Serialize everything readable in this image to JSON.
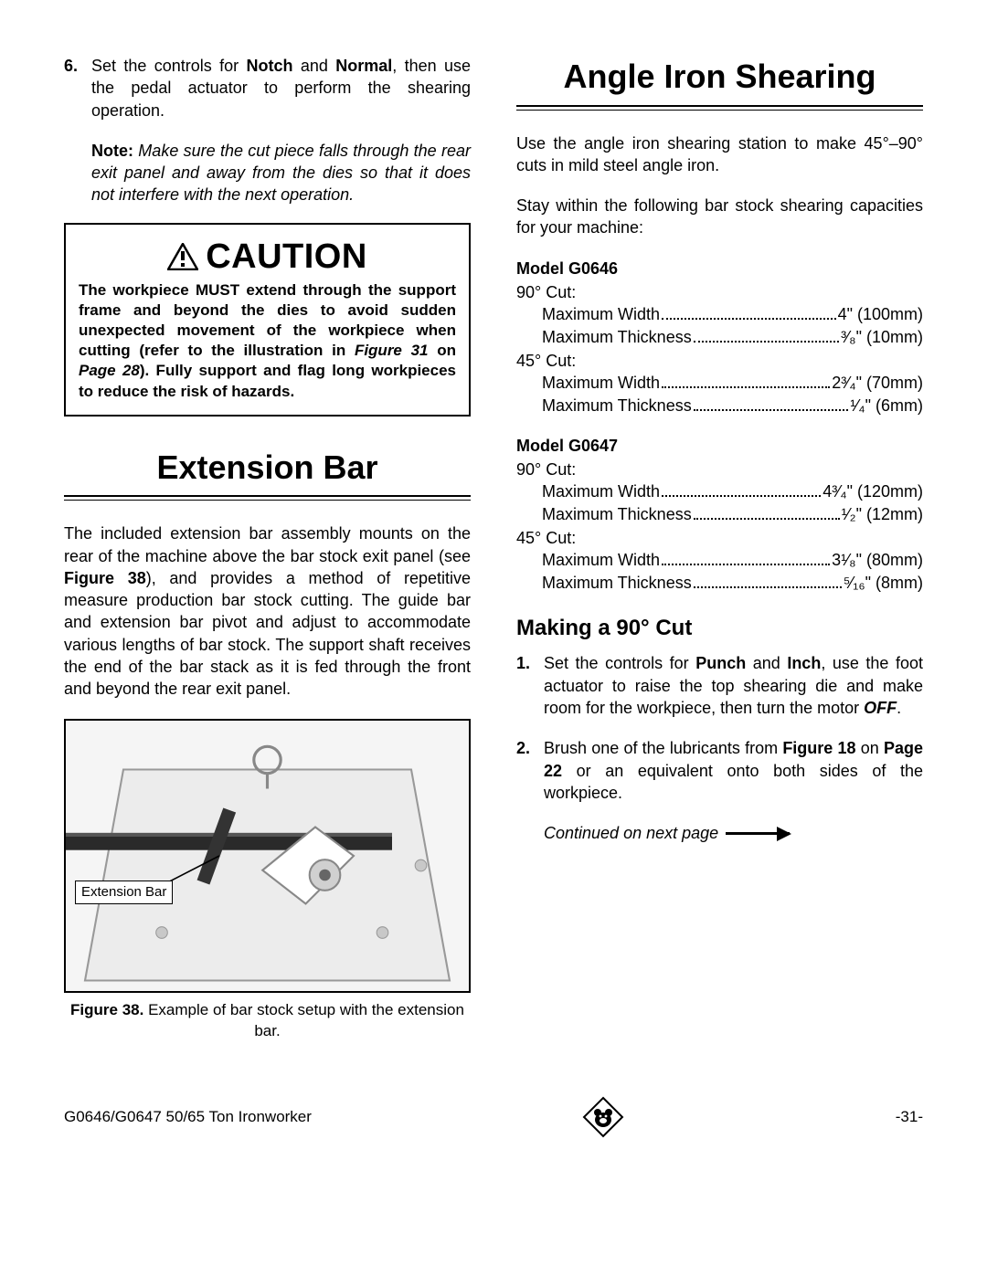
{
  "left": {
    "step6": {
      "num": "6.",
      "text_pre": "Set the controls for ",
      "b1": "Notch",
      "text_mid1": " and ",
      "b2": "Normal",
      "text_post": ", then use the pedal actuator to perform the shearing operation."
    },
    "note": {
      "label": "Note:",
      "text": " Make sure the cut piece falls through the rear exit panel and away from the dies so that it does not interfere with the next operation."
    },
    "caution": {
      "head": "CAUTION",
      "body_pre": "The workpiece MUST extend through the support frame and beyond the dies to avoid sudden unexpected movement of the workpiece when cutting (refer to the illustration in ",
      "body_fig": "Figure 31",
      "body_on": " on ",
      "body_page": "Page 28",
      "body_post": "). Fully support and flag long workpieces to reduce the risk of hazards."
    },
    "ext_title": "Extension Bar",
    "ext_para_pre": "The included extension bar assembly mounts on the rear of the machine above the bar stock exit panel (see ",
    "ext_fig": "Figure 38",
    "ext_para_post": "), and provides a method of repetitive measure production bar stock cutting. The guide bar and extension bar pivot and adjust to accommodate various lengths of bar stock. The support shaft receives the end of the bar stack as it is fed through the front and beyond the rear exit panel.",
    "fig_label": "Extension Bar",
    "fig_caption_b": "Figure 38.",
    "fig_caption_t": " Example of bar stock setup with the extension bar."
  },
  "right": {
    "title": "Angle Iron Shearing",
    "intro1": "Use the angle iron shearing station to make 45°–90° cuts in mild steel angle iron.",
    "intro2": "Stay within the following bar stock shearing capacities for your machine:",
    "models": [
      {
        "name": "Model G0646",
        "cuts": [
          {
            "label": "90° Cut:",
            "lines": [
              {
                "l": "Maximum Width",
                "v": "4\" (100mm)"
              },
              {
                "l": "Maximum Thickness",
                "v": "³⁄₈\" (10mm)"
              }
            ]
          },
          {
            "label": "45° Cut:",
            "lines": [
              {
                "l": "Maximum Width",
                "v": "2³⁄₄\" (70mm)"
              },
              {
                "l": "Maximum Thickness",
                "v": "¹⁄₄\" (6mm)"
              }
            ]
          }
        ]
      },
      {
        "name": "Model G0647",
        "cuts": [
          {
            "label": "90° Cut:",
            "lines": [
              {
                "l": "Maximum Width",
                "v": "4³⁄₄\" (120mm)"
              },
              {
                "l": "Maximum Thickness",
                "v": "¹⁄₂\" (12mm)"
              }
            ]
          },
          {
            "label": "45° Cut:",
            "lines": [
              {
                "l": "Maximum Width",
                "v": "3¹⁄₈\" (80mm)"
              },
              {
                "l": "Maximum Thickness",
                "v": "⁵⁄₁₆\" (8mm)"
              }
            ]
          }
        ]
      }
    ],
    "sub_title": "Making a 90° Cut",
    "step1": {
      "num": "1.",
      "t1": "Set the controls for ",
      "b1": "Punch",
      "t2": " and ",
      "b2": "Inch",
      "t3": ", use the foot actuator to raise the top shearing die and make room for the workpiece, then turn the motor ",
      "bi": "OFF",
      "t4": "."
    },
    "step2": {
      "num": "2.",
      "t1": "Brush one of the lubricants from ",
      "b1": "Figure 18",
      "t2": " on ",
      "b2": "Page 22",
      "t3": " or an equivalent onto both sides of the workpiece."
    },
    "continued": "Continued on next page"
  },
  "footer": {
    "left": "G0646/G0647 50/65 Ton Ironworker",
    "right": "-31-"
  },
  "colors": {
    "text": "#000000",
    "bg": "#ffffff",
    "fig_bg": "#f7f7f7"
  }
}
